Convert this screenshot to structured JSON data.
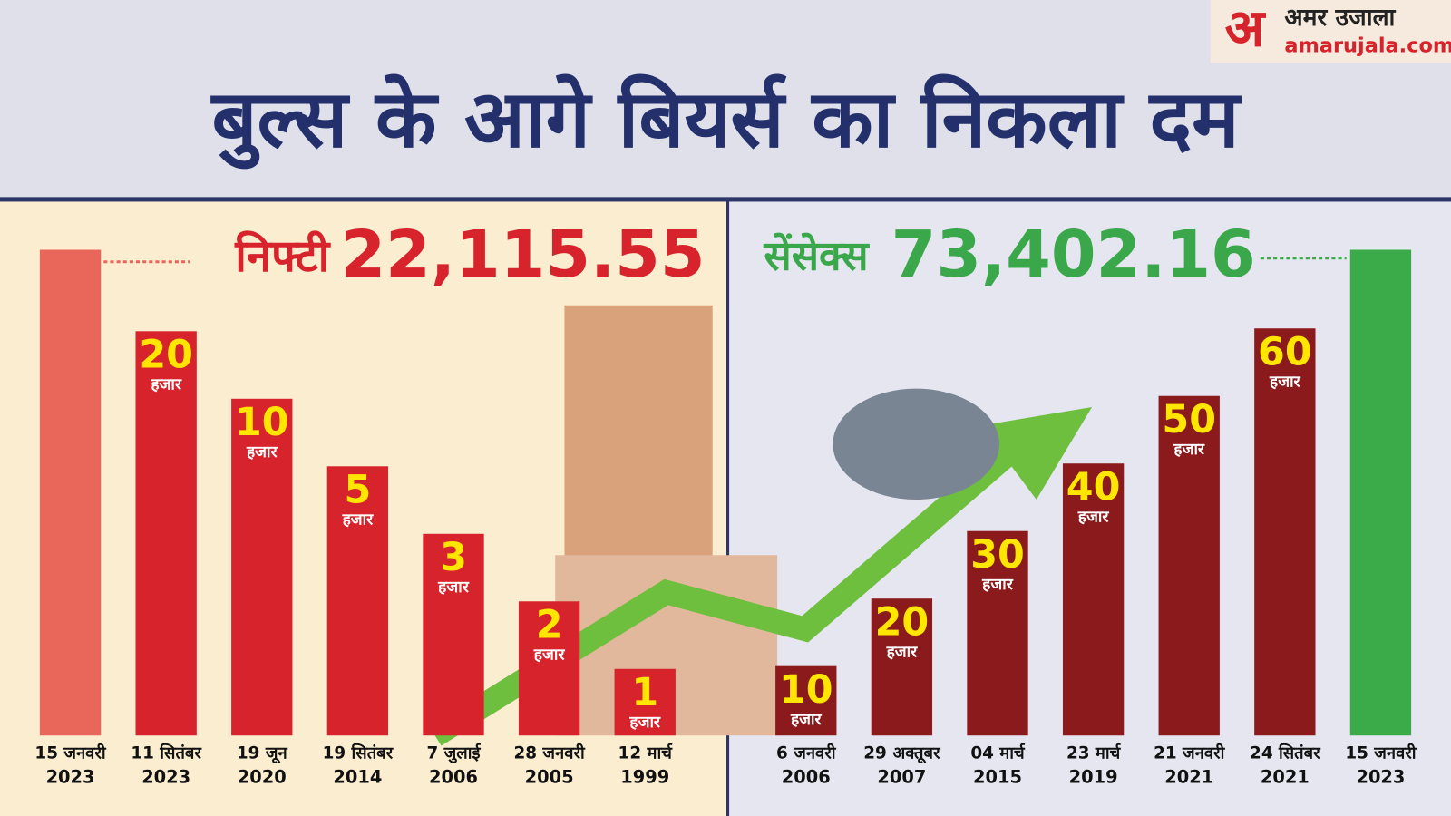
{
  "header": {
    "title": "बुल्स के आगे बियर्स का निकला दम",
    "logo": {
      "mark": "अ",
      "name": "अमर उजाला",
      "site": "amarujala.com"
    }
  },
  "nifty": {
    "label": "निफ्टी",
    "value": "22,115.55",
    "bars": [
      {
        "date": "15 जनवरी",
        "year": "2023"
      },
      {
        "amount": "20",
        "unit": "हजार",
        "date": "11 सितंबर",
        "year": "2023"
      },
      {
        "amount": "10",
        "unit": "हजार",
        "date": "19 जून",
        "year": "2020"
      },
      {
        "amount": "5",
        "unit": "हजार",
        "date": "19 सितंबर",
        "year": "2014"
      },
      {
        "amount": "3",
        "unit": "हजार",
        "date": "7 जुलाई",
        "year": "2006"
      },
      {
        "amount": "2",
        "unit": "हजार",
        "date": "28 जनवरी",
        "year": "2005"
      },
      {
        "amount": "1",
        "unit": "हजार",
        "date": "12 मार्च",
        "year": "1999"
      }
    ]
  },
  "sensex": {
    "label": "सेंसेक्स",
    "value": "73,402.16",
    "bars": [
      {
        "amount": "10",
        "unit": "हजार",
        "date": "6 जनवरी",
        "year": "2006"
      },
      {
        "amount": "20",
        "unit": "हजार",
        "date": "29 अक्तूबर",
        "year": "2007"
      },
      {
        "amount": "30",
        "unit": "हजार",
        "date": "04 मार्च",
        "year": "2015"
      },
      {
        "amount": "40",
        "unit": "हजार",
        "date": "23 मार्च",
        "year": "2019"
      },
      {
        "amount": "50",
        "unit": "हजार",
        "date": "21 जनवरी",
        "year": "2021"
      },
      {
        "amount": "60",
        "unit": "हजार",
        "date": "24 सितंबर",
        "year": "2021"
      },
      {
        "date": "15 जनवरी",
        "year": "2023"
      }
    ]
  }
}
